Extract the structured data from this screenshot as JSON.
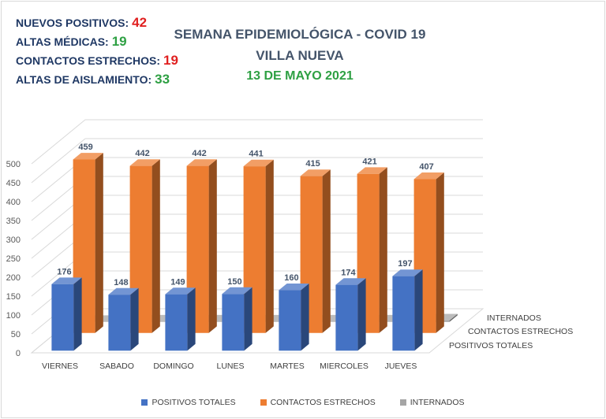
{
  "stats": [
    {
      "label": "NUEVOS POSITIVOS:",
      "value": "42",
      "color": "#e02020"
    },
    {
      "label": "ALTAS MÉDICAS:",
      "value": "19",
      "color": "#2ea043"
    },
    {
      "label": "CONTACTOS ESTRECHOS:",
      "value": "19",
      "color": "#e02020"
    },
    {
      "label": "ALTAS DE AISLAMIENTO:",
      "value": "33",
      "color": "#2ea043"
    }
  ],
  "title_line1": "SEMANA EPIDEMIOLÓGICA - COVID 19",
  "title_line2": "VILLA NUEVA",
  "date": "13 DE MAYO 2021",
  "colors": {
    "title": "#44546a",
    "date": "#2ea043"
  },
  "chart_data": {
    "type": "bar",
    "categories": [
      "VIERNES",
      "SABADO",
      "DOMINGO",
      "LUNES",
      "MARTES",
      "MIERCOLES",
      "JUEVES"
    ],
    "series": [
      {
        "name": "POSITIVOS TOTALES",
        "values": [
          176,
          148,
          149,
          150,
          160,
          174,
          197
        ],
        "color": "#4472c4"
      },
      {
        "name": "CONTACTOS ESTRECHOS",
        "values": [
          459,
          442,
          442,
          441,
          415,
          421,
          407
        ],
        "color": "#ed7d31"
      },
      {
        "name": "INTERNADOS",
        "values": [
          0,
          1,
          1,
          1,
          1,
          1,
          4
        ],
        "color": "#a5a5a5"
      }
    ],
    "yticks": [
      0,
      50,
      100,
      150,
      200,
      250,
      300,
      350,
      400,
      450,
      500
    ],
    "ylim": [
      0,
      500
    ],
    "legend_position": "bottom",
    "depth_axis_labels": [
      "INTERNADOS",
      "CONTACTOS ESTRECHOS",
      "POSITIVOS TOTALES"
    ]
  }
}
